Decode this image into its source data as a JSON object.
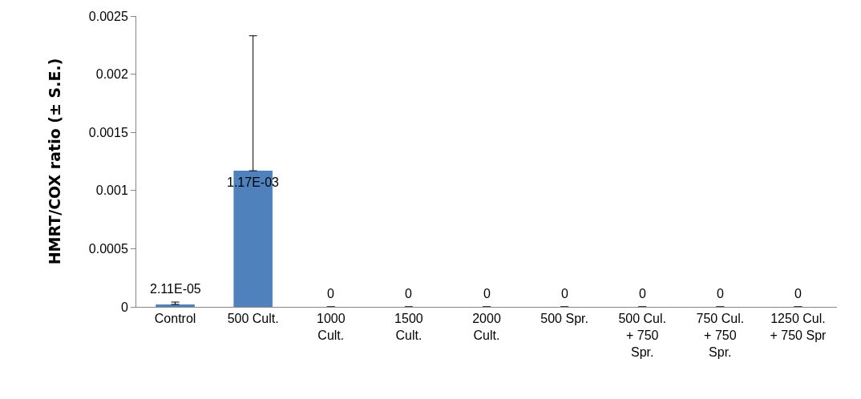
{
  "chart_data": {
    "type": "bar",
    "ylabel": "HMRT/COX ratio (± S.E.)",
    "categories": [
      "Control",
      "500 Cult.",
      "1000 Cult.",
      "1500 Cult.",
      "2000 Cult.",
      "500 Spr.",
      "500 Cul. + 750 Spr.",
      "750 Cul. + 750 Spr.",
      "1250 Cul. + 750 Spr"
    ],
    "values": [
      2.11e-05,
      0.00117,
      0,
      0,
      0,
      0,
      0,
      0,
      0
    ],
    "value_labels": [
      "2.11E-05",
      "1.17E-03",
      "0",
      "0",
      "0",
      "0",
      "0",
      "0",
      "0"
    ],
    "errors": [
      2e-05,
      0.00116,
      null,
      null,
      null,
      null,
      null,
      null,
      null
    ],
    "color": "#4f81bd",
    "ylim": [
      0,
      0.0025
    ],
    "yticks": [
      0,
      0.0005,
      0.001,
      0.0015,
      0.002,
      0.0025
    ],
    "grid": false
  }
}
